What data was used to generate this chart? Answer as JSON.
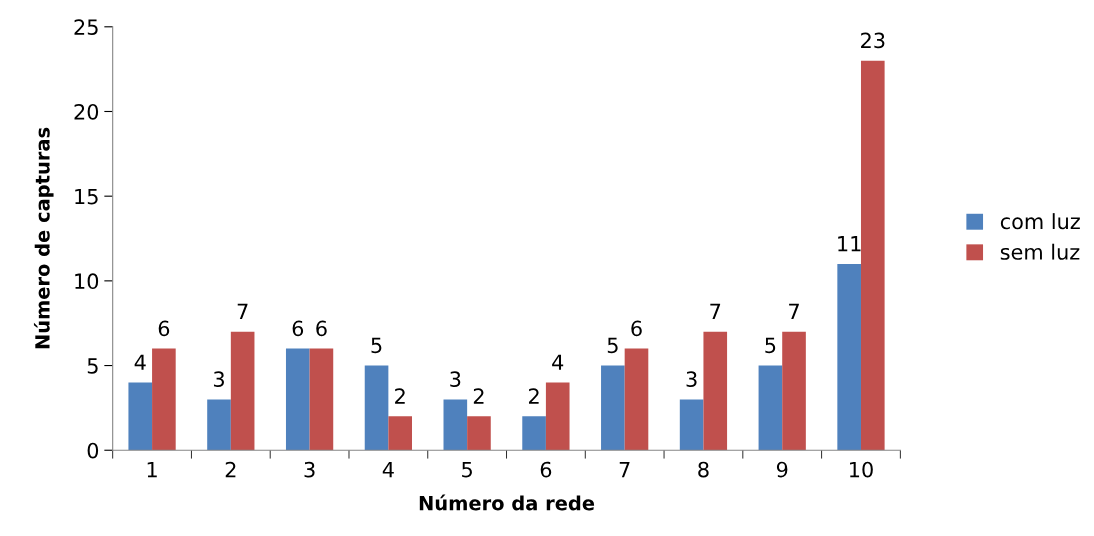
{
  "chart_data": {
    "type": "bar",
    "xlabel": "Número da rede",
    "ylabel": "Número de capturas",
    "categories": [
      "1",
      "2",
      "3",
      "4",
      "5",
      "6",
      "7",
      "8",
      "9",
      "10"
    ],
    "series": [
      {
        "name": "com luz",
        "color": "#4f81bd",
        "values": [
          4,
          3,
          6,
          5,
          3,
          2,
          5,
          3,
          5,
          11
        ]
      },
      {
        "name": "sem luz",
        "color": "#c0504d",
        "values": [
          6,
          7,
          6,
          2,
          2,
          4,
          6,
          7,
          7,
          23
        ]
      }
    ],
    "ylim": [
      0,
      25
    ],
    "yticks": [
      0,
      5,
      10,
      15,
      20,
      25
    ],
    "data_labels": true,
    "grid": false,
    "legend": "right"
  }
}
